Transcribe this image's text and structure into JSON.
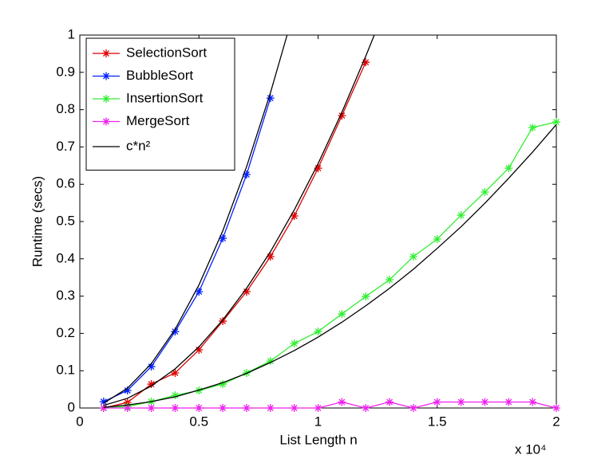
{
  "chart_data": {
    "type": "line",
    "xlabel": "List Length n",
    "ylabel": "Runtime (secs)",
    "x_multiplier": "x 10⁴",
    "xlim": [
      0,
      2
    ],
    "ylim": [
      0,
      1
    ],
    "xticks": [
      0,
      0.5,
      1,
      1.5,
      2
    ],
    "yticks": [
      0,
      0.1,
      0.2,
      0.3,
      0.4,
      0.5,
      0.6,
      0.7,
      0.8,
      0.9,
      1
    ],
    "legend": "upper left",
    "series": [
      {
        "name": "SelectionSort",
        "color": "#e00000",
        "marker": "asterisk",
        "x": [
          0.1,
          0.2,
          0.3,
          0.4,
          0.5,
          0.6,
          0.7,
          0.8,
          0.9,
          1.0,
          1.1,
          1.2
        ],
        "values": [
          0.0,
          0.015,
          0.064,
          0.094,
          0.156,
          0.233,
          0.312,
          0.406,
          0.515,
          0.643,
          0.784,
          0.927
        ]
      },
      {
        "name": "BubbleSort",
        "color": "#0020ff",
        "marker": "asterisk",
        "x": [
          0.1,
          0.2,
          0.3,
          0.4,
          0.5,
          0.6,
          0.7,
          0.8
        ],
        "values": [
          0.017,
          0.047,
          0.111,
          0.205,
          0.312,
          0.455,
          0.626,
          0.831
        ]
      },
      {
        "name": "InsertionSort",
        "color": "#33ee33",
        "marker": "asterisk",
        "x": [
          0.1,
          0.2,
          0.3,
          0.4,
          0.5,
          0.6,
          0.7,
          0.8,
          0.9,
          1.0,
          1.1,
          1.2,
          1.3,
          1.4,
          1.5,
          1.6,
          1.7,
          1.8,
          1.9,
          2.0
        ],
        "values": [
          0.0,
          0.004,
          0.017,
          0.034,
          0.047,
          0.064,
          0.094,
          0.126,
          0.173,
          0.205,
          0.252,
          0.299,
          0.344,
          0.406,
          0.453,
          0.517,
          0.579,
          0.643,
          0.752,
          0.767
        ]
      },
      {
        "name": "MergeSort",
        "color": "#ee22ee",
        "marker": "asterisk",
        "x": [
          0.1,
          0.2,
          0.3,
          0.4,
          0.5,
          0.6,
          0.7,
          0.8,
          0.9,
          1.0,
          1.1,
          1.2,
          1.3,
          1.4,
          1.5,
          1.6,
          1.7,
          1.8,
          1.9,
          2.0
        ],
        "values": [
          0,
          0,
          0,
          0,
          0,
          0,
          0,
          0,
          0,
          0,
          0.016,
          0,
          0.016,
          0,
          0.016,
          0.016,
          0.016,
          0.016,
          0.016,
          0
        ]
      },
      {
        "name": "c*n²",
        "color": "#000000",
        "marker": "none",
        "curves": [
          {
            "x": [
              0.1,
              0.2,
              0.3,
              0.4,
              0.5,
              0.6,
              0.7,
              0.8,
              0.87
            ],
            "values": [
              0.013,
              0.053,
              0.119,
              0.211,
              0.33,
              0.475,
              0.647,
              0.845,
              1.0
            ]
          },
          {
            "x": [
              0.1,
              0.2,
              0.3,
              0.4,
              0.5,
              0.6,
              0.7,
              0.8,
              0.9,
              1.0,
              1.1,
              1.2,
              1.236
            ],
            "values": [
              0.007,
              0.026,
              0.059,
              0.105,
              0.164,
              0.236,
              0.321,
              0.419,
              0.531,
              0.655,
              0.793,
              0.943,
              1.0
            ]
          },
          {
            "x": [
              0.1,
              0.2,
              0.3,
              0.4,
              0.5,
              0.6,
              0.7,
              0.8,
              0.9,
              1.0,
              1.1,
              1.2,
              1.3,
              1.4,
              1.5,
              1.6,
              1.7,
              1.8,
              1.9,
              2.0
            ],
            "values": [
              0.002,
              0.008,
              0.017,
              0.03,
              0.048,
              0.068,
              0.093,
              0.122,
              0.154,
              0.19,
              0.23,
              0.274,
              0.321,
              0.372,
              0.428,
              0.486,
              0.549,
              0.616,
              0.686,
              0.76
            ]
          }
        ]
      }
    ]
  }
}
